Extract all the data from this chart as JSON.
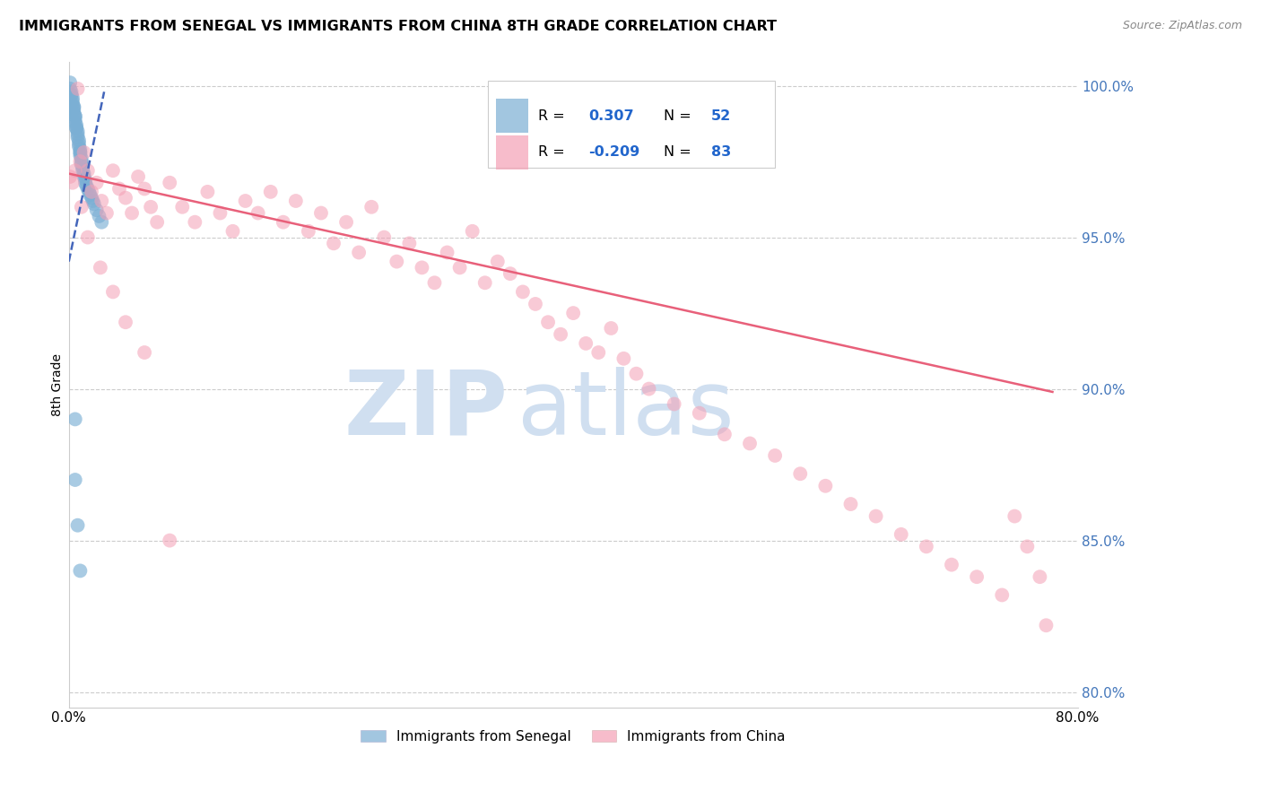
{
  "title": "IMMIGRANTS FROM SENEGAL VS IMMIGRANTS FROM CHINA 8TH GRADE CORRELATION CHART",
  "source": "Source: ZipAtlas.com",
  "ylabel": "8th Grade",
  "xlim": [
    0.0,
    0.8
  ],
  "ylim": [
    0.795,
    1.008
  ],
  "right_ytick_vals": [
    1.0,
    0.95,
    0.9,
    0.85,
    0.8
  ],
  "right_ytick_labels": [
    "100.0%",
    "95.0%",
    "90.0%",
    "85.0%",
    "80.0%"
  ],
  "legend_blue_R": "0.307",
  "legend_blue_N": "52",
  "legend_pink_R": "-0.209",
  "legend_pink_N": "83",
  "legend_blue_label": "Immigrants from Senegal",
  "legend_pink_label": "Immigrants from China",
  "blue_color": "#7BAFD4",
  "pink_color": "#F4A0B5",
  "blue_line_color": "#4466BB",
  "pink_line_color": "#E8607A",
  "watermark_zip_color": "#D0DFF0",
  "watermark_atlas_color": "#D0DFF0",
  "blue_line_x": [
    0.0,
    0.028
  ],
  "blue_line_y": [
    0.942,
    0.998
  ],
  "pink_line_x": [
    0.0,
    0.78
  ],
  "pink_line_y": [
    0.971,
    0.899
  ],
  "blue_x": [
    0.001,
    0.001,
    0.002,
    0.002,
    0.002,
    0.003,
    0.003,
    0.003,
    0.004,
    0.004,
    0.004,
    0.004,
    0.005,
    0.005,
    0.005,
    0.005,
    0.006,
    0.006,
    0.006,
    0.007,
    0.007,
    0.007,
    0.008,
    0.008,
    0.008,
    0.009,
    0.009,
    0.009,
    0.009,
    0.01,
    0.01,
    0.01,
    0.011,
    0.011,
    0.012,
    0.012,
    0.013,
    0.013,
    0.014,
    0.015,
    0.016,
    0.017,
    0.018,
    0.019,
    0.02,
    0.022,
    0.024,
    0.026,
    0.005,
    0.005,
    0.007,
    0.009
  ],
  "blue_y": [
    1.001,
    0.999,
    0.998,
    0.997,
    0.997,
    0.996,
    0.995,
    0.994,
    0.993,
    0.993,
    0.992,
    0.991,
    0.99,
    0.99,
    0.989,
    0.988,
    0.987,
    0.986,
    0.986,
    0.985,
    0.984,
    0.983,
    0.982,
    0.981,
    0.98,
    0.979,
    0.978,
    0.978,
    0.977,
    0.976,
    0.975,
    0.974,
    0.973,
    0.972,
    0.971,
    0.97,
    0.969,
    0.968,
    0.967,
    0.966,
    0.965,
    0.964,
    0.963,
    0.962,
    0.961,
    0.959,
    0.957,
    0.955,
    0.89,
    0.87,
    0.855,
    0.84
  ],
  "pink_x": [
    0.001,
    0.003,
    0.005,
    0.007,
    0.009,
    0.012,
    0.015,
    0.018,
    0.022,
    0.026,
    0.03,
    0.035,
    0.04,
    0.045,
    0.05,
    0.055,
    0.06,
    0.065,
    0.07,
    0.08,
    0.09,
    0.1,
    0.11,
    0.12,
    0.13,
    0.14,
    0.15,
    0.16,
    0.17,
    0.18,
    0.19,
    0.2,
    0.21,
    0.22,
    0.23,
    0.24,
    0.25,
    0.26,
    0.27,
    0.28,
    0.29,
    0.3,
    0.31,
    0.32,
    0.33,
    0.34,
    0.35,
    0.36,
    0.37,
    0.38,
    0.39,
    0.4,
    0.41,
    0.42,
    0.43,
    0.44,
    0.45,
    0.46,
    0.48,
    0.5,
    0.52,
    0.54,
    0.56,
    0.58,
    0.6,
    0.62,
    0.64,
    0.66,
    0.68,
    0.7,
    0.72,
    0.74,
    0.75,
    0.76,
    0.77,
    0.775,
    0.01,
    0.015,
    0.025,
    0.035,
    0.045,
    0.06,
    0.08
  ],
  "pink_y": [
    0.97,
    0.968,
    0.972,
    0.999,
    0.975,
    0.978,
    0.972,
    0.965,
    0.968,
    0.962,
    0.958,
    0.972,
    0.966,
    0.963,
    0.958,
    0.97,
    0.966,
    0.96,
    0.955,
    0.968,
    0.96,
    0.955,
    0.965,
    0.958,
    0.952,
    0.962,
    0.958,
    0.965,
    0.955,
    0.962,
    0.952,
    0.958,
    0.948,
    0.955,
    0.945,
    0.96,
    0.95,
    0.942,
    0.948,
    0.94,
    0.935,
    0.945,
    0.94,
    0.952,
    0.935,
    0.942,
    0.938,
    0.932,
    0.928,
    0.922,
    0.918,
    0.925,
    0.915,
    0.912,
    0.92,
    0.91,
    0.905,
    0.9,
    0.895,
    0.892,
    0.885,
    0.882,
    0.878,
    0.872,
    0.868,
    0.862,
    0.858,
    0.852,
    0.848,
    0.842,
    0.838,
    0.832,
    0.858,
    0.848,
    0.838,
    0.822,
    0.96,
    0.95,
    0.94,
    0.932,
    0.922,
    0.912,
    0.85
  ]
}
